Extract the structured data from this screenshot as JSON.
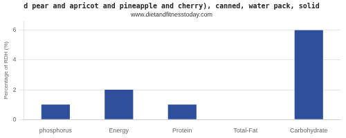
{
  "chart_data": {
    "type": "bar",
    "title": "d pear and apricot and pineapple and cherry), canned, water pack, solid",
    "subtitle": "www.dietandfitnesstoday.com",
    "categories": [
      "phosphorus",
      "Energy",
      "Protein",
      "Total-Fat",
      "Carbohydrate"
    ],
    "values": [
      1.0,
      2.0,
      1.0,
      0.0,
      6.0
    ],
    "color": "#2e4f9b",
    "ylabel": "Percentage of RDH (%)",
    "ylim": [
      0,
      6.6
    ],
    "yticks": [
      0,
      2,
      4,
      6
    ],
    "grid": true
  }
}
